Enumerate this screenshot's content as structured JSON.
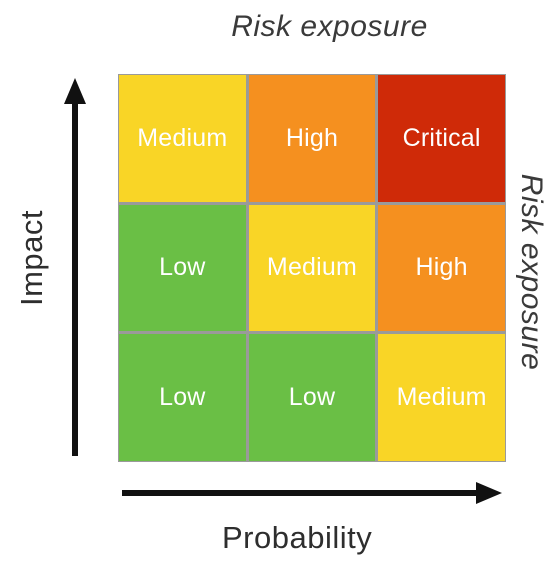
{
  "title_top": "Risk exposure",
  "title_side": "Risk exposure",
  "axes": {
    "y_label": "Impact",
    "x_label": "Probability"
  },
  "matrix": {
    "rows": [
      [
        {
          "label": "Medium",
          "color": "#f9d526"
        },
        {
          "label": "High",
          "color": "#f5901f"
        },
        {
          "label": "Critical",
          "color": "#cf2a08"
        }
      ],
      [
        {
          "label": "Low",
          "color": "#6abf45"
        },
        {
          "label": "Medium",
          "color": "#f9d526"
        },
        {
          "label": "High",
          "color": "#f5901f"
        }
      ],
      [
        {
          "label": "Low",
          "color": "#6abf45"
        },
        {
          "label": "Low",
          "color": "#6abf45"
        },
        {
          "label": "Medium",
          "color": "#f9d526"
        }
      ]
    ]
  },
  "colors": {
    "arrow": "#111111",
    "grid_border": "#9a9a9a"
  }
}
